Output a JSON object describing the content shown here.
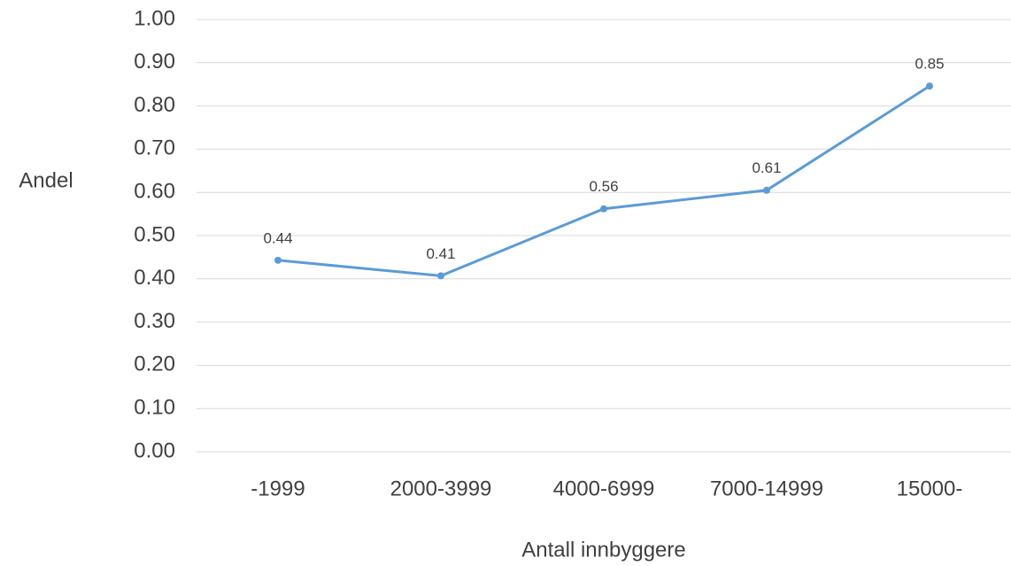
{
  "chart_data": {
    "type": "line",
    "x_label": "Antall innbyggere",
    "y_label": "Andel",
    "categories": [
      "-1999",
      "2000-3999",
      "4000-6999",
      "7000-14999",
      "15000-"
    ],
    "series": [
      {
        "name": "Andel",
        "color": "#5b9bd5",
        "values": [
          0.443,
          0.407,
          0.562,
          0.605,
          0.846
        ],
        "value_labels": [
          "0.44",
          "0.41",
          "0.56",
          "0.61",
          "0.85"
        ]
      }
    ],
    "ylim": [
      0,
      1
    ],
    "yticks": [
      {
        "value": 0,
        "label": "0.00"
      },
      {
        "value": 0.1,
        "label": "0.10"
      },
      {
        "value": 0.2,
        "label": "0.20"
      },
      {
        "value": 0.3,
        "label": "0.30"
      },
      {
        "value": 0.4,
        "label": "0.40"
      },
      {
        "value": 0.5,
        "label": "0.50"
      },
      {
        "value": 0.6,
        "label": "0.60"
      },
      {
        "value": 0.7,
        "label": "0.70"
      },
      {
        "value": 0.8,
        "label": "0.80"
      },
      {
        "value": 0.9,
        "label": "0.90"
      },
      {
        "value": 1,
        "label": "1.00"
      }
    ],
    "grid": true
  }
}
